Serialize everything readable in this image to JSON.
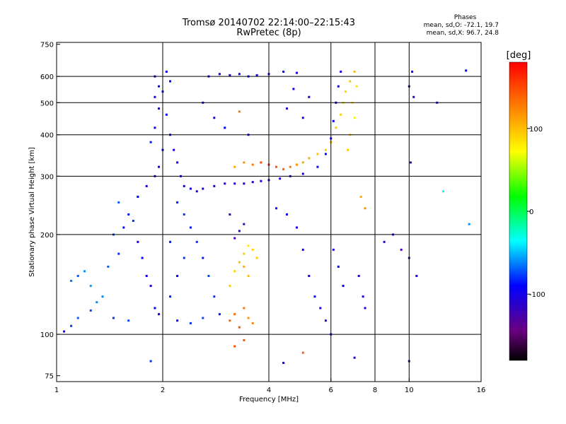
{
  "header": {
    "title": "Tromsø 20140702 22:14:00–22:15:43",
    "subtitle": "RwPretec (8p)"
  },
  "phase_stats": {
    "heading": "Phases",
    "line_o": "mean, sd,O: -72.1, 19.7",
    "line_x": "mean, sd,X:  96.7, 24.8"
  },
  "colorbar": {
    "unit_label": "[deg]",
    "ticks": [
      "100",
      "0",
      "-100"
    ],
    "range": [
      -180,
      180
    ]
  },
  "colors": {
    "background": "#ffffff",
    "axis": "#000000",
    "grid": "#000000"
  },
  "chart_data": {
    "type": "scatter",
    "xlabel": "Frequency [MHz]",
    "ylabel": "Stationary phase Virtual Height [km]",
    "x_scale": "log",
    "y_scale": "log",
    "xlim": [
      1,
      16
    ],
    "ylim": [
      72,
      760
    ],
    "x_ticks": [
      1,
      2,
      4,
      6,
      8,
      10,
      16
    ],
    "x_tick_labels": [
      "1",
      "2",
      "4",
      "6",
      "8",
      "10",
      "16"
    ],
    "y_ticks": [
      75,
      100,
      200,
      300,
      400,
      500,
      600,
      750
    ],
    "y_tick_labels": [
      "75",
      "100",
      "200",
      "300",
      "400",
      "500",
      "600",
      "750"
    ],
    "x_grid": [
      2,
      4,
      6,
      8,
      10
    ],
    "y_grid": [
      100,
      200,
      300,
      400,
      500,
      600
    ],
    "color_scale": "rainbow",
    "series": [
      {
        "points": [
          [
            1.05,
            102,
            -95
          ],
          [
            1.1,
            106,
            -80
          ],
          [
            1.15,
            112,
            -70
          ],
          [
            1.25,
            118,
            -75
          ],
          [
            1.3,
            125,
            -60
          ],
          [
            1.1,
            145,
            -65
          ],
          [
            1.15,
            150,
            -70
          ],
          [
            1.2,
            155,
            -60
          ],
          [
            1.25,
            140,
            -55
          ],
          [
            1.35,
            130,
            -60
          ],
          [
            1.4,
            160,
            -70
          ],
          [
            1.5,
            175,
            -80
          ],
          [
            1.45,
            200,
            -75
          ],
          [
            1.55,
            210,
            -90
          ],
          [
            1.6,
            230,
            -85
          ],
          [
            1.5,
            250,
            -70
          ],
          [
            1.65,
            220,
            -80
          ],
          [
            1.7,
            190,
            -100
          ],
          [
            1.75,
            170,
            -90
          ],
          [
            1.8,
            150,
            -95
          ],
          [
            1.85,
            140,
            -100
          ],
          [
            1.9,
            120,
            -90
          ],
          [
            1.95,
            115,
            -95
          ],
          [
            1.6,
            110,
            -75
          ],
          [
            1.45,
            112,
            -80
          ],
          [
            1.7,
            260,
            -90
          ],
          [
            1.8,
            280,
            -95
          ],
          [
            1.9,
            300,
            -100
          ],
          [
            1.95,
            320,
            -95
          ],
          [
            2.0,
            360,
            -90
          ],
          [
            1.85,
            380,
            -85
          ],
          [
            1.9,
            420,
            -95
          ],
          [
            1.95,
            480,
            -100
          ],
          [
            1.9,
            520,
            -95
          ],
          [
            1.95,
            560,
            -90
          ],
          [
            1.9,
            600,
            -100
          ],
          [
            2.05,
            620,
            -95
          ],
          [
            2.1,
            580,
            -90
          ],
          [
            2.0,
            540,
            -85
          ],
          [
            2.05,
            460,
            -95
          ],
          [
            2.1,
            400,
            -90
          ],
          [
            2.15,
            360,
            -100
          ],
          [
            2.2,
            330,
            -95
          ],
          [
            2.25,
            300,
            -100
          ],
          [
            2.3,
            280,
            -95
          ],
          [
            2.4,
            275,
            -100
          ],
          [
            2.5,
            270,
            -105
          ],
          [
            2.6,
            275,
            -100
          ],
          [
            2.8,
            280,
            -105
          ],
          [
            3.0,
            285,
            -110
          ],
          [
            3.2,
            285,
            -105
          ],
          [
            3.4,
            285,
            -100
          ],
          [
            3.6,
            288,
            -105
          ],
          [
            3.8,
            290,
            -100
          ],
          [
            4.0,
            292,
            -100
          ],
          [
            4.3,
            295,
            -105
          ],
          [
            4.6,
            300,
            -100
          ],
          [
            5.0,
            305,
            -100
          ],
          [
            5.5,
            320,
            -95
          ],
          [
            5.8,
            350,
            -90
          ],
          [
            6.0,
            390,
            -100
          ],
          [
            6.1,
            440,
            -95
          ],
          [
            6.2,
            500,
            -90
          ],
          [
            6.3,
            560,
            -95
          ],
          [
            6.4,
            620,
            -100
          ],
          [
            2.2,
            250,
            -85
          ],
          [
            2.3,
            230,
            -80
          ],
          [
            2.4,
            210,
            -85
          ],
          [
            2.5,
            190,
            -80
          ],
          [
            2.6,
            170,
            -85
          ],
          [
            2.7,
            150,
            -75
          ],
          [
            2.8,
            130,
            -80
          ],
          [
            2.9,
            115,
            -85
          ],
          [
            2.2,
            110,
            -90
          ],
          [
            2.4,
            108,
            -80
          ],
          [
            2.6,
            112,
            -75
          ],
          [
            2.1,
            130,
            -85
          ],
          [
            2.2,
            150,
            -90
          ],
          [
            2.3,
            170,
            -80
          ],
          [
            2.1,
            190,
            -85
          ],
          [
            2.7,
            600,
            -90
          ],
          [
            2.9,
            610,
            -95
          ],
          [
            3.1,
            605,
            -100
          ],
          [
            3.3,
            610,
            -95
          ],
          [
            3.5,
            600,
            -90
          ],
          [
            3.7,
            605,
            -100
          ],
          [
            4.0,
            610,
            -95
          ],
          [
            4.4,
            620,
            -90
          ],
          [
            4.8,
            615,
            -100
          ],
          [
            3.1,
            110,
            140
          ],
          [
            3.2,
            115,
            135
          ],
          [
            3.3,
            105,
            145
          ],
          [
            3.4,
            120,
            130
          ],
          [
            3.5,
            112,
            120
          ],
          [
            3.6,
            108,
            125
          ],
          [
            3.1,
            140,
            95
          ],
          [
            3.2,
            155,
            90
          ],
          [
            3.3,
            165,
            100
          ],
          [
            3.4,
            175,
            95
          ],
          [
            3.5,
            185,
            85
          ],
          [
            3.6,
            180,
            90
          ],
          [
            3.7,
            170,
            95
          ],
          [
            3.4,
            160,
            110
          ],
          [
            3.5,
            150,
            100
          ],
          [
            3.2,
            195,
            -120
          ],
          [
            3.3,
            205,
            -110
          ],
          [
            3.4,
            215,
            -115
          ],
          [
            3.1,
            230,
            -120
          ],
          [
            3.2,
            320,
            110
          ],
          [
            3.4,
            330,
            120
          ],
          [
            3.6,
            325,
            130
          ],
          [
            3.8,
            330,
            150
          ],
          [
            4.0,
            325,
            160
          ],
          [
            4.2,
            320,
            150
          ],
          [
            4.4,
            315,
            140
          ],
          [
            4.6,
            320,
            130
          ],
          [
            4.8,
            325,
            120
          ],
          [
            5.0,
            330,
            110
          ],
          [
            5.2,
            340,
            105
          ],
          [
            5.5,
            350,
            100
          ],
          [
            5.8,
            360,
            95
          ],
          [
            6.0,
            380,
            100
          ],
          [
            6.2,
            420,
            95
          ],
          [
            6.4,
            460,
            90
          ],
          [
            6.5,
            500,
            85
          ],
          [
            6.6,
            540,
            90
          ],
          [
            6.8,
            580,
            95
          ],
          [
            7.0,
            620,
            100
          ],
          [
            6.9,
            500,
            80
          ],
          [
            7.0,
            450,
            75
          ],
          [
            6.8,
            400,
            90
          ],
          [
            6.7,
            360,
            95
          ],
          [
            7.1,
            560,
            85
          ],
          [
            7.2,
            150,
            -110
          ],
          [
            7.4,
            130,
            -100
          ],
          [
            7.5,
            120,
            -105
          ],
          [
            7.3,
            260,
            110
          ],
          [
            7.5,
            240,
            120
          ],
          [
            8.5,
            190,
            -110
          ],
          [
            9.0,
            200,
            -115
          ],
          [
            9.5,
            180,
            -120
          ],
          [
            10.0,
            170,
            -110
          ],
          [
            10.5,
            150,
            -100
          ],
          [
            10.0,
            560,
            -100
          ],
          [
            10.2,
            620,
            -95
          ],
          [
            10.3,
            520,
            -110
          ],
          [
            10.1,
            330,
            -120
          ],
          [
            12.5,
            270,
            -30
          ],
          [
            14.5,
            625,
            -90
          ],
          [
            14.8,
            215,
            -60
          ],
          [
            12.0,
            500,
            -110
          ],
          [
            4.2,
            240,
            -95
          ],
          [
            4.5,
            230,
            -90
          ],
          [
            4.8,
            210,
            -100
          ],
          [
            5.0,
            180,
            -95
          ],
          [
            5.2,
            150,
            -100
          ],
          [
            5.4,
            130,
            -95
          ],
          [
            5.6,
            120,
            -100
          ],
          [
            5.8,
            110,
            -105
          ],
          [
            6.0,
            100,
            -110
          ],
          [
            5.0,
            88,
            140
          ],
          [
            4.4,
            82,
            -100
          ],
          [
            1.85,
            83,
            -80
          ],
          [
            3.2,
            92,
            150
          ],
          [
            3.4,
            96,
            145
          ],
          [
            7.0,
            85,
            -110
          ],
          [
            10.0,
            83,
            -105
          ],
          [
            6.5,
            140,
            -90
          ],
          [
            6.3,
            160,
            -95
          ],
          [
            6.1,
            180,
            -100
          ],
          [
            3.0,
            420,
            -90
          ],
          [
            3.5,
            400,
            -95
          ],
          [
            2.8,
            450,
            -100
          ],
          [
            2.6,
            500,
            -95
          ],
          [
            3.3,
            470,
            130
          ],
          [
            4.5,
            480,
            -110
          ],
          [
            5.0,
            450,
            -100
          ],
          [
            4.7,
            550,
            -95
          ],
          [
            5.2,
            520,
            -105
          ]
        ]
      }
    ]
  }
}
